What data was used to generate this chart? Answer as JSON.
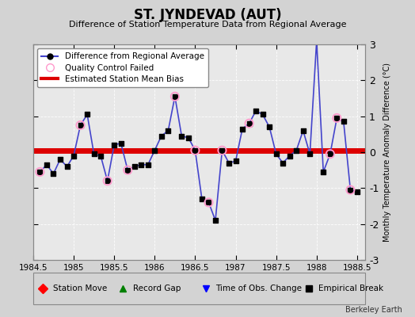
{
  "title": "ST. JYNDEVAD (AUT)",
  "subtitle": "Difference of Station Temperature Data from Regional Average",
  "ylabel": "Monthly Temperature Anomaly Difference (°C)",
  "xlim": [
    1984.5,
    1988.6
  ],
  "ylim": [
    -3,
    3
  ],
  "xticks": [
    1984.5,
    1985,
    1985.5,
    1986,
    1986.5,
    1987,
    1987.5,
    1988,
    1988.5
  ],
  "xticklabels": [
    "1984.5",
    "1985",
    "1985.5",
    "1986",
    "1986.5",
    "1987",
    "1987.5",
    "1988",
    "1988.5"
  ],
  "yticks": [
    -3,
    -2,
    -1,
    0,
    1,
    2,
    3
  ],
  "yticklabels": [
    "-3",
    "-2",
    "-1",
    "0",
    "1",
    "2",
    "3"
  ],
  "bias_value": 0.05,
  "background_color": "#d3d3d3",
  "plot_bg_color": "#e8e8e8",
  "line_color": "#4444cc",
  "marker_color": "#000000",
  "bias_color": "#dd0000",
  "qc_color": "#ff99cc",
  "x_data": [
    1984.583,
    1984.667,
    1984.75,
    1984.833,
    1984.917,
    1985.0,
    1985.083,
    1985.167,
    1985.25,
    1985.333,
    1985.417,
    1985.5,
    1985.583,
    1985.667,
    1985.75,
    1985.833,
    1985.917,
    1986.0,
    1986.083,
    1986.167,
    1986.25,
    1986.333,
    1986.417,
    1986.5,
    1986.583,
    1986.667,
    1986.75,
    1986.833,
    1986.917,
    1987.0,
    1987.083,
    1987.167,
    1987.25,
    1987.333,
    1987.417,
    1987.5,
    1987.583,
    1987.667,
    1987.75,
    1987.833,
    1987.917,
    1988.0,
    1988.083,
    1988.167,
    1988.25,
    1988.333,
    1988.417,
    1988.5
  ],
  "y_data": [
    -0.55,
    -0.35,
    -0.6,
    -0.2,
    -0.4,
    -0.1,
    0.75,
    1.05,
    -0.05,
    -0.1,
    -0.8,
    0.2,
    0.25,
    -0.5,
    -0.4,
    -0.35,
    -0.35,
    0.05,
    0.45,
    0.6,
    1.55,
    0.45,
    0.4,
    0.05,
    -1.3,
    -1.4,
    -1.9,
    0.05,
    -0.3,
    -0.25,
    0.65,
    0.8,
    1.15,
    1.05,
    0.7,
    -0.05,
    -0.3,
    -0.1,
    0.05,
    0.6,
    -0.05,
    3.1,
    -0.55,
    -0.05,
    0.95,
    0.85,
    -1.05,
    -1.1
  ],
  "qc_failed_indices": [
    0,
    6,
    10,
    13,
    20,
    23,
    25,
    27,
    31,
    43,
    44,
    46
  ],
  "footnote": "Berkeley Earth"
}
